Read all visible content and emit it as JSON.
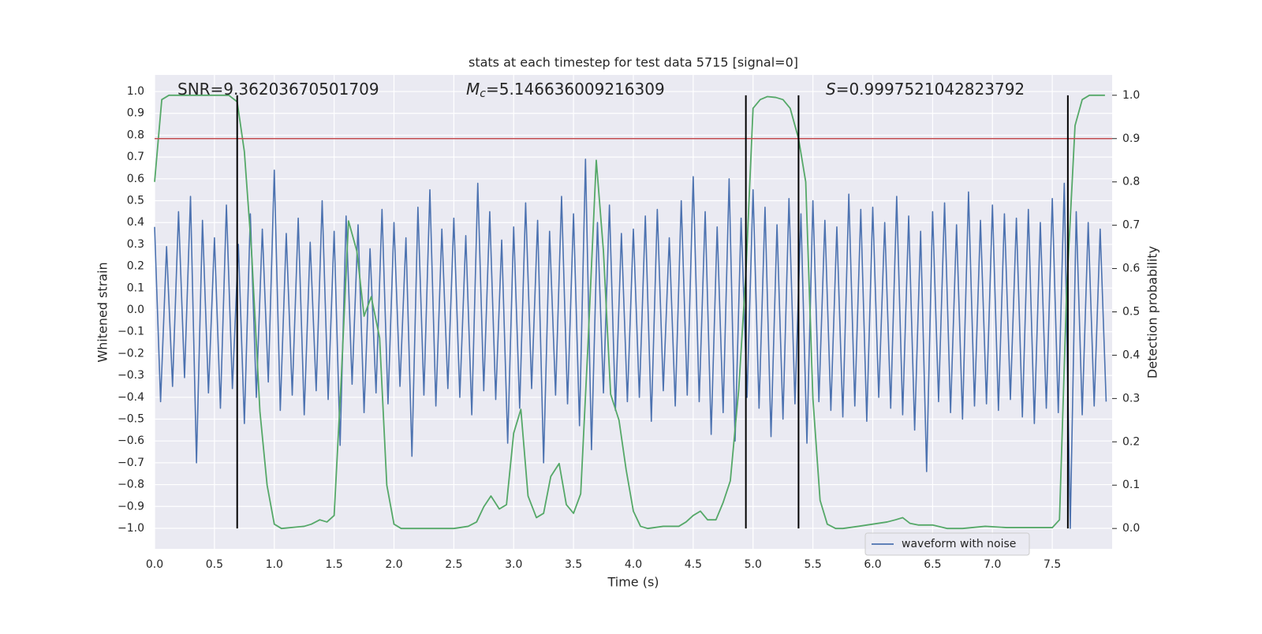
{
  "chart_data": {
    "type": "line",
    "title": "stats at each timestep for test data 5715 [signal=0]",
    "xlabel": "Time (s)",
    "ylabel": "Whitened strain",
    "y2label": "Detection probability",
    "annotations": [
      {
        "text": "SNR=9.36203670501709"
      },
      {
        "symbol": "M",
        "subscript": "c",
        "text": "=5.146636009216309"
      },
      {
        "symbol": "S",
        "text": "=0.9997521042823792"
      }
    ],
    "xlim": [
      0,
      8
    ],
    "ylim": [
      -1.094,
      1.076
    ],
    "y2lim": [
      -0.047,
      1.047
    ],
    "xticks": [
      {
        "value": 0,
        "label": "0.0"
      },
      {
        "value": 0.5,
        "label": "0.5"
      },
      {
        "value": 1,
        "label": "1.0"
      },
      {
        "value": 1.5,
        "label": "1.5"
      },
      {
        "value": 2,
        "label": "2.0"
      },
      {
        "value": 2.5,
        "label": "2.5"
      },
      {
        "value": 3,
        "label": "3.0"
      },
      {
        "value": 3.5,
        "label": "3.5"
      },
      {
        "value": 4,
        "label": "4.0"
      },
      {
        "value": 4.5,
        "label": "4.5"
      },
      {
        "value": 5,
        "label": "5.0"
      },
      {
        "value": 5.5,
        "label": "5.5"
      },
      {
        "value": 6,
        "label": "6.0"
      },
      {
        "value": 6.5,
        "label": "6.5"
      },
      {
        "value": 7,
        "label": "7.0"
      },
      {
        "value": 7.5,
        "label": "7.5"
      }
    ],
    "yticks": [
      {
        "value": 1,
        "label": "1.0"
      },
      {
        "value": 0.9,
        "label": "0.9"
      },
      {
        "value": 0.8,
        "label": "0.8"
      },
      {
        "value": 0.7,
        "label": "0.7"
      },
      {
        "value": 0.6,
        "label": "0.6"
      },
      {
        "value": 0.5,
        "label": "0.5"
      },
      {
        "value": 0.4,
        "label": "0.4"
      },
      {
        "value": 0.3,
        "label": "0.3"
      },
      {
        "value": 0.2,
        "label": "0.2"
      },
      {
        "value": 0.1,
        "label": "0.1"
      },
      {
        "value": 0,
        "label": "0.0"
      },
      {
        "value": -0.1,
        "label": "−0.1"
      },
      {
        "value": -0.2,
        "label": "−0.2"
      },
      {
        "value": -0.3,
        "label": "−0.3"
      },
      {
        "value": -0.4,
        "label": "−0.4"
      },
      {
        "value": -0.5,
        "label": "−0.5"
      },
      {
        "value": -0.6,
        "label": "−0.6"
      },
      {
        "value": -0.7,
        "label": "−0.7"
      },
      {
        "value": -0.8,
        "label": "−0.8"
      },
      {
        "value": -0.9,
        "label": "−0.9"
      },
      {
        "value": -1,
        "label": "−1.0"
      }
    ],
    "y2ticks": [
      {
        "value": 0,
        "label": "0.0"
      },
      {
        "value": 0.1,
        "label": "0.1"
      },
      {
        "value": 0.2,
        "label": "0.2"
      },
      {
        "value": 0.3,
        "label": "0.3"
      },
      {
        "value": 0.4,
        "label": "0.4"
      },
      {
        "value": 0.5,
        "label": "0.5"
      },
      {
        "value": 0.6,
        "label": "0.6"
      },
      {
        "value": 0.7,
        "label": "0.7"
      },
      {
        "value": 0.8,
        "label": "0.8"
      },
      {
        "value": 0.9,
        "label": "0.9"
      },
      {
        "value": 1,
        "label": "1.0"
      }
    ],
    "grid": true,
    "legend": "lower right",
    "threshold": {
      "value": 0.9,
      "color": "#c44e52"
    },
    "vlines": {
      "values": [
        0.69,
        4.94,
        5.38,
        7.63
      ],
      "from": 0,
      "to": 1,
      "color": "#000000"
    },
    "series": [
      {
        "name": "waveform with noise",
        "color": "#4c72b0",
        "x": [
          0,
          0.05,
          0.1,
          0.15,
          0.2,
          0.25,
          0.3,
          0.35,
          0.4,
          0.45,
          0.5,
          0.55,
          0.6,
          0.65,
          0.7,
          0.75,
          0.8,
          0.85,
          0.9,
          0.95,
          1,
          1.05,
          1.1,
          1.15,
          1.2,
          1.25,
          1.3,
          1.35,
          1.4,
          1.45,
          1.5,
          1.55,
          1.6,
          1.65,
          1.7,
          1.75,
          1.8,
          1.85,
          1.9,
          1.95,
          2,
          2.05,
          2.1,
          2.15,
          2.2,
          2.25,
          2.3,
          2.35,
          2.4,
          2.45,
          2.5,
          2.55,
          2.6,
          2.65,
          2.7,
          2.75,
          2.8,
          2.85,
          2.9,
          2.95,
          3,
          3.05,
          3.1,
          3.15,
          3.2,
          3.25,
          3.3,
          3.35,
          3.4,
          3.45,
          3.5,
          3.55,
          3.6,
          3.65,
          3.7,
          3.75,
          3.8,
          3.85,
          3.9,
          3.95,
          4,
          4.05,
          4.1,
          4.15,
          4.2,
          4.25,
          4.3,
          4.35,
          4.4,
          4.45,
          4.5,
          4.55,
          4.6,
          4.65,
          4.7,
          4.75,
          4.8,
          4.85,
          4.9,
          4.95,
          5,
          5.05,
          5.1,
          5.15,
          5.2,
          5.25,
          5.3,
          5.35,
          5.4,
          5.45,
          5.5,
          5.55,
          5.6,
          5.65,
          5.7,
          5.75,
          5.8,
          5.85,
          5.9,
          5.95,
          6,
          6.05,
          6.1,
          6.15,
          6.2,
          6.25,
          6.3,
          6.35,
          6.4,
          6.45,
          6.5,
          6.55,
          6.6,
          6.65,
          6.7,
          6.75,
          6.8,
          6.85,
          6.9,
          6.95,
          7,
          7.05,
          7.1,
          7.15,
          7.2,
          7.25,
          7.3,
          7.35,
          7.4,
          7.45,
          7.5,
          7.55,
          7.6,
          7.65,
          7.7,
          7.75,
          7.8,
          7.85,
          7.9,
          7.95
        ],
        "values": [
          0.38,
          -0.42,
          0.29,
          -0.35,
          0.45,
          -0.31,
          0.52,
          -0.7,
          0.41,
          -0.38,
          0.33,
          -0.45,
          0.48,
          -0.36,
          0.3,
          -0.52,
          0.44,
          -0.4,
          0.37,
          -0.33,
          0.64,
          -0.46,
          0.35,
          -0.39,
          0.42,
          -0.48,
          0.31,
          -0.37,
          0.5,
          -0.41,
          0.36,
          -0.62,
          0.43,
          -0.34,
          0.39,
          -0.47,
          0.28,
          -0.38,
          0.46,
          -0.43,
          0.4,
          -0.35,
          0.33,
          -0.67,
          0.47,
          -0.39,
          0.55,
          -0.44,
          0.37,
          -0.36,
          0.42,
          -0.4,
          0.34,
          -0.48,
          0.58,
          -0.37,
          0.45,
          -0.41,
          0.32,
          -0.61,
          0.38,
          -0.45,
          0.49,
          -0.36,
          0.41,
          -0.7,
          0.36,
          -0.39,
          0.52,
          -0.43,
          0.44,
          -0.53,
          0.69,
          -0.64,
          0.4,
          -0.38,
          0.48,
          -0.46,
          0.35,
          -0.42,
          0.37,
          -0.4,
          0.43,
          -0.51,
          0.46,
          -0.37,
          0.33,
          -0.44,
          0.5,
          -0.39,
          0.61,
          -0.42,
          0.45,
          -0.57,
          0.38,
          -0.47,
          0.6,
          -0.6,
          0.42,
          -0.4,
          0.55,
          -0.45,
          0.47,
          -0.58,
          0.39,
          -0.5,
          0.51,
          -0.43,
          0.44,
          -0.61,
          0.5,
          -0.42,
          0.41,
          -0.46,
          0.38,
          -0.49,
          0.53,
          -0.44,
          0.46,
          -0.51,
          0.47,
          -0.4,
          0.4,
          -0.45,
          0.52,
          -0.48,
          0.43,
          -0.55,
          0.36,
          -0.74,
          0.45,
          -0.42,
          0.49,
          -0.47,
          0.39,
          -0.5,
          0.54,
          -0.44,
          0.41,
          -0.43,
          0.48,
          -0.46,
          0.44,
          -0.41,
          0.42,
          -0.49,
          0.46,
          -0.52,
          0.4,
          -0.45,
          0.51,
          -0.47,
          0.58,
          -1.0,
          0.45,
          -0.48,
          0.4,
          -0.44,
          0.37,
          -0.42
        ]
      },
      {
        "color": "#55a868",
        "axis": "y2",
        "x": [
          0,
          0.06,
          0.12,
          0.25,
          0.4,
          0.55,
          0.62,
          0.69,
          0.75,
          0.81,
          0.88,
          0.94,
          1,
          1.06,
          1.25,
          1.31,
          1.38,
          1.44,
          1.5,
          1.56,
          1.62,
          1.69,
          1.75,
          1.81,
          1.88,
          1.94,
          2,
          2.06,
          2.5,
          2.62,
          2.69,
          2.75,
          2.81,
          2.88,
          2.94,
          3,
          3.06,
          3.12,
          3.19,
          3.25,
          3.31,
          3.38,
          3.44,
          3.5,
          3.56,
          3.62,
          3.69,
          3.75,
          3.81,
          3.88,
          3.94,
          4,
          4.06,
          4.12,
          4.25,
          4.38,
          4.44,
          4.5,
          4.56,
          4.62,
          4.69,
          4.75,
          4.81,
          4.88,
          4.94,
          5,
          5.06,
          5.12,
          5.19,
          5.25,
          5.31,
          5.38,
          5.44,
          5.5,
          5.56,
          5.62,
          5.69,
          5.75,
          5.88,
          6,
          6.12,
          6.19,
          6.25,
          6.31,
          6.38,
          6.5,
          6.62,
          6.75,
          6.94,
          7.12,
          7.25,
          7.5,
          7.56,
          7.62,
          7.69,
          7.75,
          7.81,
          7.94
        ],
        "values": [
          0.8,
          0.99,
          1,
          1,
          1,
          1,
          1,
          0.985,
          0.87,
          0.64,
          0.27,
          0.1,
          0.01,
          0,
          0.005,
          0.01,
          0.02,
          0.015,
          0.03,
          0.35,
          0.71,
          0.64,
          0.49,
          0.535,
          0.44,
          0.1,
          0.01,
          0,
          0,
          0.005,
          0.015,
          0.05,
          0.075,
          0.045,
          0.055,
          0.22,
          0.275,
          0.075,
          0.025,
          0.035,
          0.12,
          0.15,
          0.055,
          0.035,
          0.08,
          0.42,
          0.85,
          0.64,
          0.31,
          0.25,
          0.135,
          0.04,
          0.005,
          0,
          0.005,
          0.005,
          0.015,
          0.03,
          0.04,
          0.02,
          0.02,
          0.06,
          0.11,
          0.32,
          0.59,
          0.97,
          0.99,
          0.997,
          0.995,
          0.99,
          0.97,
          0.9,
          0.8,
          0.3,
          0.065,
          0.01,
          0,
          0,
          0.005,
          0.01,
          0.015,
          0.02,
          0.025,
          0.012,
          0.008,
          0.008,
          0,
          0,
          0.005,
          0.002,
          0.002,
          0.002,
          0.02,
          0.55,
          0.93,
          0.99,
          1,
          1
        ]
      }
    ]
  }
}
